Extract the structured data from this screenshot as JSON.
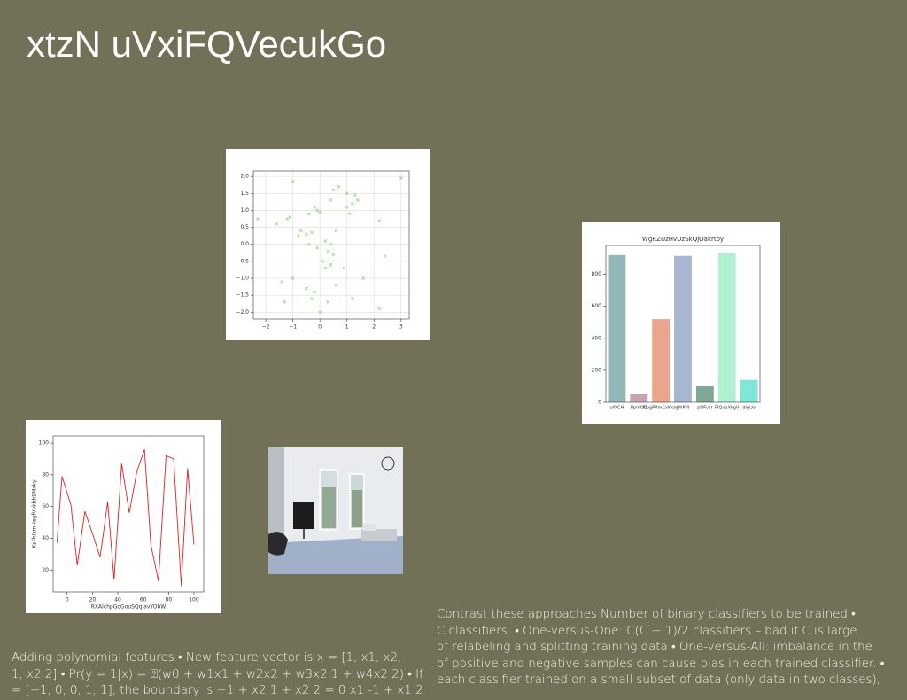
{
  "slide": {
    "title": "xtzN uVxiFQVecukGo",
    "right_text": [
      "Contrast these approaches Number of binary classifiers to be trained •",
      "C classifiers. • One-versus-One: C(C − 1)/2 classifiers – bad if C is large",
      "of relabeling and splitting training data • One-versus-All: imbalance in the",
      "of positive and negative samples can cause bias in each trained classifier. •",
      "each classifier trained on a small subset of data (only data in two classes),"
    ],
    "left_text": [
      "Adding polynomial features • New feature vector is x = [1, x1, x2,",
      "1, x2 2] • Pr(y = 1|x) = ⍰(w0 + w1x1 + w2x2 + w3x2 1 + w4x2 2) • If",
      "= [−1, 0, 0, 1, 1], the boundary is −1 + x2 1 + x2 2 = 0 x1 -1 + x1 2"
    ]
  },
  "chart_data": [
    {
      "type": "scatter",
      "color": "#90e080",
      "grid": true,
      "x": [
        3.0,
        -1.0,
        0.5,
        0.7,
        1.0,
        1.3,
        1.4,
        1.2,
        0.4,
        -0.2,
        -0.1,
        0.0,
        -0.4,
        -1.1,
        -1.2,
        -2.3,
        -1.6,
        -0.7,
        -0.5,
        -0.3,
        -0.8,
        0.6,
        1.1,
        1.0,
        2.2,
        0.2,
        0.4,
        -0.1,
        0.3,
        -0.4,
        0.5,
        0.1,
        0.4,
        0.2,
        0.9,
        1.6,
        2.4,
        -1.4,
        -1.0,
        -0.5,
        -0.2,
        0.3,
        1.2,
        -1.3,
        0.0,
        2.2,
        -0.3,
        0.6
      ],
      "values": [
        1.95,
        1.85,
        1.6,
        1.7,
        1.5,
        1.45,
        1.3,
        1.2,
        1.3,
        1.1,
        1.0,
        0.95,
        0.9,
        0.8,
        0.75,
        0.75,
        0.6,
        0.4,
        0.3,
        0.35,
        0.25,
        0.4,
        0.9,
        1.1,
        0.7,
        0.1,
        0.0,
        -0.1,
        -0.2,
        0.0,
        -0.3,
        -0.5,
        -0.6,
        -0.7,
        -0.7,
        -1.0,
        -0.35,
        -1.1,
        -1.0,
        -1.3,
        -1.4,
        -1.7,
        -1.6,
        -1.7,
        -2.0,
        -1.9,
        -1.6,
        -1.2
      ],
      "xlim": [
        -2.46,
        3.3
      ],
      "ylim": [
        -2.2,
        2.16
      ],
      "xticks": [
        {
          "value": -2,
          "label": "−2"
        },
        {
          "value": -1,
          "label": "−1"
        },
        0,
        1,
        2,
        3
      ],
      "yticks": [
        {
          "value": 2,
          "label": "2.0"
        },
        {
          "value": 1.5,
          "label": "1.5"
        },
        {
          "value": 1,
          "label": "1.0"
        },
        {
          "value": 0.5,
          "label": "0.5"
        },
        {
          "value": 0,
          "label": "0.0"
        },
        {
          "value": -0.5,
          "label": "−0.5"
        },
        {
          "value": -1,
          "label": "−1.0"
        },
        {
          "value": -1.5,
          "label": "−1.5"
        },
        {
          "value": -2,
          "label": "−2.0"
        }
      ]
    },
    {
      "type": "bar",
      "title": "WgRZUzHvDzSkQjOakrtoy",
      "categories": [
        "uIOCH",
        "PpInOQ",
        "DugPRmCxKkag",
        "tWPVI",
        "pDFvsr",
        "FIQvpXkgV",
        "dlgUo"
      ],
      "values": [
        920,
        50,
        520,
        915,
        100,
        935,
        140
      ],
      "colors": [
        "#93b7b9",
        "#c9a3b3",
        "#eba58b",
        "#a8b6d2",
        "#7fa894",
        "#aef0d0",
        "#80e6d6"
      ],
      "ylim": [
        0,
        980
      ],
      "yticks": [
        0,
        200,
        400,
        600,
        800
      ]
    },
    {
      "type": "line",
      "color": "#e02020",
      "xlabel": "RXAlchpGoGouSQqlavYObW",
      "ylabel": "KsFhIzmHegfVvkbhSMxky",
      "x": [
        -8,
        -4,
        3,
        8,
        14,
        20,
        26,
        32,
        37,
        43,
        49,
        55,
        61,
        66,
        72,
        78,
        84,
        90,
        95,
        100
      ],
      "values": [
        37,
        79,
        61,
        23,
        57,
        43,
        28,
        63,
        14,
        87,
        56,
        82,
        96,
        36,
        13,
        92,
        90,
        10,
        84,
        36
      ],
      "xlim": [
        -11,
        107.7
      ],
      "ylim": [
        6.2,
        104.5
      ],
      "xticks": [
        0,
        20,
        40,
        60,
        80,
        100
      ],
      "yticks": [
        20,
        40,
        60,
        80,
        100
      ]
    }
  ]
}
